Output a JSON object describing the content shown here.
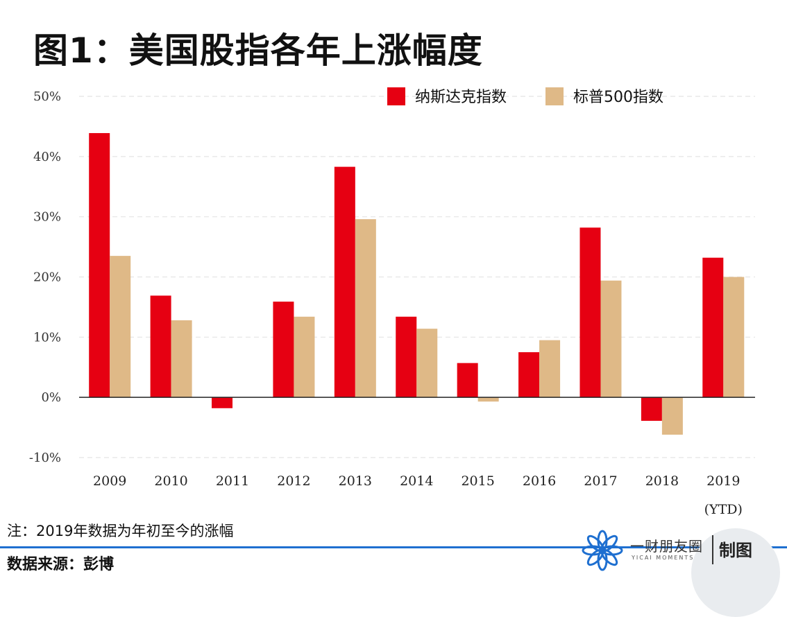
{
  "title": "图1：美国股指各年上涨幅度",
  "chart_data": {
    "type": "bar",
    "categories": [
      "2009",
      "2010",
      "2011",
      "2012",
      "2013",
      "2014",
      "2015",
      "2016",
      "2017",
      "2018",
      "2019"
    ],
    "category_sublabels": {
      "2019": "(YTD)"
    },
    "series": [
      {
        "name": "纳斯达克指数",
        "color": "#e60012",
        "values": [
          43.9,
          16.9,
          -1.8,
          15.9,
          38.3,
          13.4,
          5.7,
          7.5,
          28.2,
          -3.9,
          23.2
        ]
      },
      {
        "name": "标普500指数",
        "color": "#dfb987",
        "values": [
          23.5,
          12.8,
          0.0,
          13.4,
          29.6,
          11.4,
          -0.7,
          9.5,
          19.4,
          -6.2,
          20.0
        ]
      }
    ],
    "ylim": [
      -10,
      50
    ],
    "yticks": [
      "-10%",
      "0%",
      "10%",
      "20%",
      "30%",
      "40%",
      "50%"
    ],
    "ytick_values": [
      -10,
      0,
      10,
      20,
      30,
      40,
      50
    ],
    "grid": true,
    "legend": "top-right"
  },
  "note": "注：2019年数据为年初至今的涨幅",
  "source": "数据来源：彭博",
  "brand": {
    "name": "一财朋友圈",
    "subtitle": "YICAI MOMENTS",
    "made_by": "制图",
    "accent": "#1e6fd0"
  }
}
